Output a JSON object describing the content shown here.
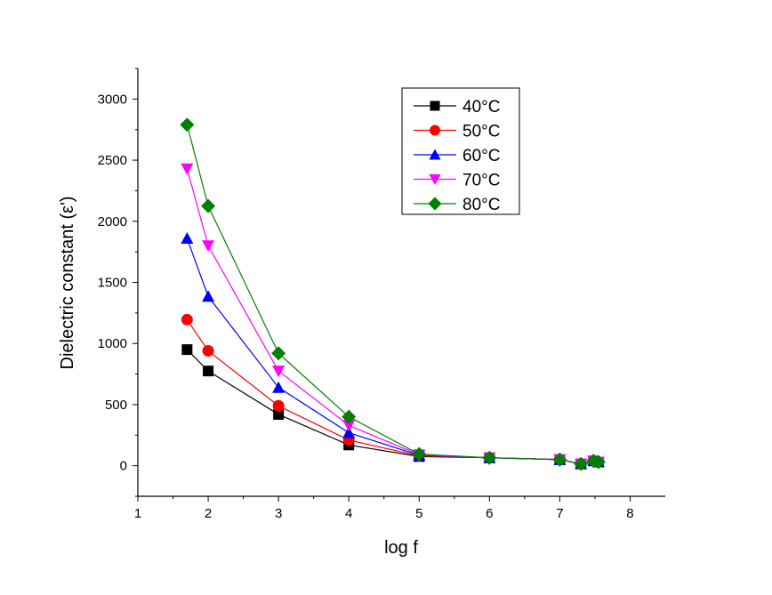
{
  "chart_data": {
    "type": "line",
    "title": "",
    "xlabel": "log f",
    "ylabel": "Dielectric constant (ε')",
    "xlim": [
      1,
      8.5
    ],
    "ylim": [
      -250,
      3250
    ],
    "xticks": [
      1,
      2,
      3,
      4,
      5,
      6,
      7,
      8
    ],
    "yticks": [
      0,
      500,
      1000,
      1500,
      2000,
      2500,
      3000
    ],
    "legend_position": "top-center",
    "x": [
      1.7,
      2,
      3,
      4,
      5,
      6,
      7,
      7.3,
      7.48,
      7.55
    ],
    "series": [
      {
        "name": "40°C",
        "color": "#000000",
        "marker": "square",
        "values": [
          950,
          775,
          420,
          170,
          75,
          65,
          50,
          15,
          40,
          30
        ]
      },
      {
        "name": "50°C",
        "color": "#ff0000",
        "marker": "circle",
        "values": [
          1195,
          940,
          490,
          210,
          80,
          65,
          50,
          15,
          40,
          30
        ]
      },
      {
        "name": "60°C",
        "color": "#0000ff",
        "marker": "triangle-up",
        "values": [
          1860,
          1385,
          640,
          270,
          85,
          65,
          50,
          15,
          40,
          30
        ]
      },
      {
        "name": "70°C",
        "color": "#ff00ff",
        "marker": "triangle-down",
        "values": [
          2430,
          1800,
          775,
          330,
          90,
          65,
          50,
          15,
          40,
          30
        ]
      },
      {
        "name": "80°C",
        "color": "#008000",
        "marker": "diamond",
        "values": [
          2790,
          2125,
          920,
          400,
          95,
          65,
          50,
          15,
          40,
          30
        ]
      }
    ]
  }
}
